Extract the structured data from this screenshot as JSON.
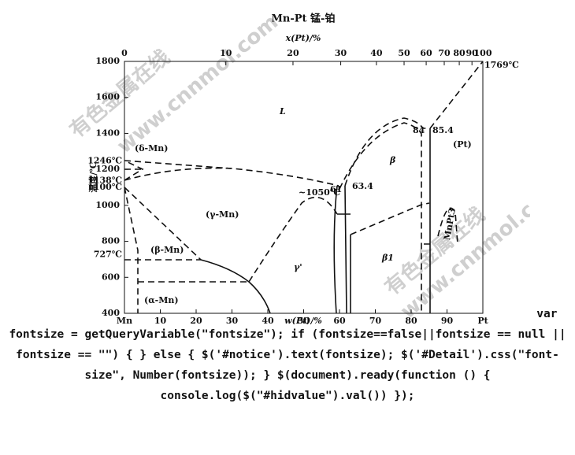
{
  "diagram": {
    "title": "Mn-Pt 锰-铂",
    "top_axis_label": "x(Pt)/%",
    "top_ticks": [
      0,
      10,
      20,
      30,
      40,
      50,
      60,
      70,
      80,
      90,
      100
    ],
    "y_axis_label": "温度/℃",
    "y_ticks": [
      1800,
      1600,
      1400,
      1200,
      1000,
      800,
      600,
      400
    ],
    "bottom_axis_label": "w(Pt)/%",
    "bottom_ticks": [
      {
        "value": 0,
        "label": "Mn"
      },
      10,
      20,
      30,
      40,
      50,
      60,
      70,
      80,
      90,
      {
        "value": 100,
        "label": "Pt"
      }
    ],
    "temperature_labels": [
      {
        "value": 1246,
        "label": "1246℃"
      },
      {
        "value": 1138,
        "label": "1138℃"
      },
      {
        "value": 1100,
        "label": "1100℃"
      },
      {
        "value": 727,
        "label": "727℃"
      }
    ],
    "regions": [
      "L",
      "(δ-Mn)",
      "(γ-Mn)",
      "(β-Mn)",
      "(α-Mn)",
      "γ'",
      "β",
      "β1",
      "(Pt)",
      "MnPt3"
    ],
    "points": [
      "~1050℃",
      "61",
      "63.4",
      "84",
      "85.4",
      "1769℃"
    ],
    "watermarks": [
      "有色金属在线",
      "www.cnnmol.com"
    ]
  },
  "script_text": {
    "lead": "var",
    "body": "fontsize = getQueryVariable(\"fontsize\"); if (fontsize==false||fontsize == null || fontsize == \"\") { } else { $('#notice').text(fontsize); $('#Detail').css(\"font-size\", Number(fontsize)); } $(document).ready(function () { console.log($(\"#hidvalue\").val()) });"
  }
}
